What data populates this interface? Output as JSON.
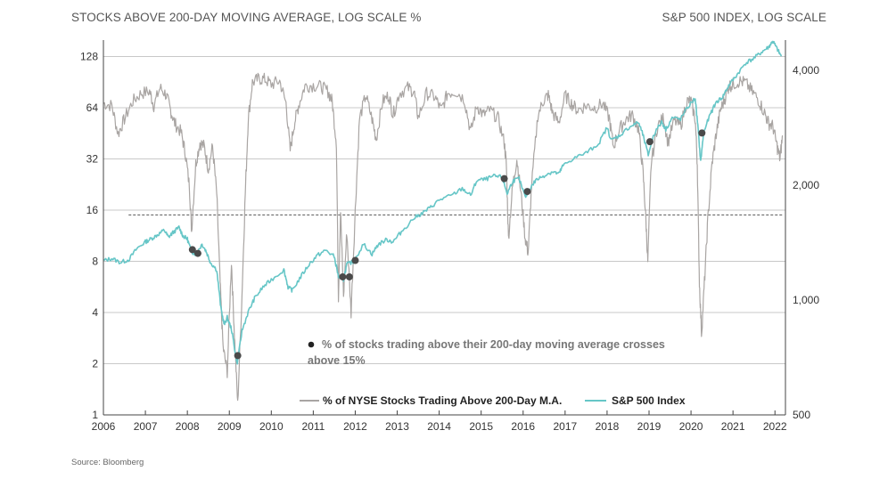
{
  "header": {
    "left_title": "STOCKS ABOVE 200-DAY MOVING AVERAGE, LOG SCALE %",
    "right_title": "S&P 500 INDEX, LOG SCALE"
  },
  "source": "Source: Bloomberg",
  "chart_data": {
    "type": "line",
    "left_axis": {
      "scale": "log2",
      "ticks": [
        1,
        2,
        4,
        8,
        16,
        32,
        64,
        128
      ],
      "ylim": [
        1,
        160
      ]
    },
    "right_axis": {
      "scale": "log",
      "ticks": [
        500,
        1000,
        2000,
        4000
      ],
      "tick_labels": [
        "500",
        "1,000",
        "2,000",
        "4,000"
      ],
      "ylim": [
        500,
        4800
      ]
    },
    "x_axis": {
      "ticks": [
        2006,
        2007,
        2008,
        2009,
        2010,
        2011,
        2012,
        2013,
        2014,
        2015,
        2016,
        2017,
        2018,
        2019,
        2020,
        2021,
        2022
      ],
      "xlim": [
        2006.0,
        2022.25
      ]
    },
    "grid": "horizontal",
    "threshold": {
      "value": 15,
      "style": "dashed",
      "x_start": 2006.6,
      "x_end": 2022.2
    },
    "series": [
      {
        "name": "% of NYSE Stocks Trading Above 200-Day M.A.",
        "axis": "left",
        "color": "#a9a5a3",
        "points": [
          [
            2006.0,
            68
          ],
          [
            2006.2,
            66
          ],
          [
            2006.35,
            45
          ],
          [
            2006.5,
            55
          ],
          [
            2006.7,
            70
          ],
          [
            2006.9,
            78
          ],
          [
            2007.1,
            80
          ],
          [
            2007.2,
            66
          ],
          [
            2007.35,
            84
          ],
          [
            2007.5,
            76
          ],
          [
            2007.6,
            62
          ],
          [
            2007.7,
            52
          ],
          [
            2007.85,
            46
          ],
          [
            2007.95,
            35
          ],
          [
            2008.05,
            22
          ],
          [
            2008.1,
            12
          ],
          [
            2008.2,
            30
          ],
          [
            2008.3,
            40
          ],
          [
            2008.4,
            38
          ],
          [
            2008.5,
            28
          ],
          [
            2008.6,
            38
          ],
          [
            2008.7,
            20
          ],
          [
            2008.78,
            6
          ],
          [
            2008.85,
            2.5
          ],
          [
            2008.95,
            1.8
          ],
          [
            2009.05,
            8
          ],
          [
            2009.12,
            3
          ],
          [
            2009.2,
            1.15
          ],
          [
            2009.3,
            5
          ],
          [
            2009.38,
            20
          ],
          [
            2009.45,
            55
          ],
          [
            2009.55,
            90
          ],
          [
            2009.7,
            95
          ],
          [
            2009.85,
            94
          ],
          [
            2010.0,
            88
          ],
          [
            2010.2,
            92
          ],
          [
            2010.35,
            68
          ],
          [
            2010.45,
            36
          ],
          [
            2010.55,
            52
          ],
          [
            2010.65,
            66
          ],
          [
            2010.8,
            86
          ],
          [
            2011.0,
            87
          ],
          [
            2011.2,
            85
          ],
          [
            2011.35,
            80
          ],
          [
            2011.45,
            70
          ],
          [
            2011.55,
            40
          ],
          [
            2011.6,
            5
          ],
          [
            2011.65,
            16
          ],
          [
            2011.72,
            5
          ],
          [
            2011.8,
            12
          ],
          [
            2011.9,
            4
          ],
          [
            2012.0,
            16
          ],
          [
            2012.1,
            55
          ],
          [
            2012.25,
            76
          ],
          [
            2012.4,
            55
          ],
          [
            2012.5,
            42
          ],
          [
            2012.65,
            70
          ],
          [
            2012.8,
            76
          ],
          [
            2012.9,
            58
          ],
          [
            2013.05,
            78
          ],
          [
            2013.25,
            84
          ],
          [
            2013.4,
            80
          ],
          [
            2013.5,
            56
          ],
          [
            2013.7,
            78
          ],
          [
            2013.9,
            74
          ],
          [
            2014.05,
            62
          ],
          [
            2014.2,
            78
          ],
          [
            2014.4,
            80
          ],
          [
            2014.6,
            72
          ],
          [
            2014.75,
            46
          ],
          [
            2014.9,
            66
          ],
          [
            2015.05,
            58
          ],
          [
            2015.2,
            62
          ],
          [
            2015.4,
            56
          ],
          [
            2015.55,
            40
          ],
          [
            2015.6,
            30
          ],
          [
            2015.65,
            11
          ],
          [
            2015.75,
            22
          ],
          [
            2015.85,
            32
          ],
          [
            2015.95,
            20
          ],
          [
            2016.05,
            11
          ],
          [
            2016.12,
            9
          ],
          [
            2016.2,
            22
          ],
          [
            2016.35,
            58
          ],
          [
            2016.5,
            72
          ],
          [
            2016.6,
            76
          ],
          [
            2016.7,
            60
          ],
          [
            2016.85,
            52
          ],
          [
            2017.0,
            76
          ],
          [
            2017.15,
            68
          ],
          [
            2017.3,
            62
          ],
          [
            2017.5,
            66
          ],
          [
            2017.7,
            64
          ],
          [
            2017.9,
            68
          ],
          [
            2018.05,
            56
          ],
          [
            2018.15,
            38
          ],
          [
            2018.3,
            48
          ],
          [
            2018.45,
            55
          ],
          [
            2018.6,
            58
          ],
          [
            2018.75,
            48
          ],
          [
            2018.85,
            28
          ],
          [
            2018.92,
            15
          ],
          [
            2018.97,
            8
          ],
          [
            2019.05,
            30
          ],
          [
            2019.2,
            50
          ],
          [
            2019.35,
            56
          ],
          [
            2019.45,
            40
          ],
          [
            2019.6,
            54
          ],
          [
            2019.75,
            50
          ],
          [
            2019.9,
            70
          ],
          [
            2020.0,
            70
          ],
          [
            2020.1,
            55
          ],
          [
            2020.15,
            30
          ],
          [
            2020.2,
            6
          ],
          [
            2020.25,
            3
          ],
          [
            2020.32,
            6
          ],
          [
            2020.4,
            14
          ],
          [
            2020.5,
            30
          ],
          [
            2020.6,
            45
          ],
          [
            2020.7,
            62
          ],
          [
            2020.8,
            72
          ],
          [
            2020.9,
            86
          ],
          [
            2021.0,
            88
          ],
          [
            2021.15,
            92
          ],
          [
            2021.3,
            90
          ],
          [
            2021.45,
            80
          ],
          [
            2021.6,
            72
          ],
          [
            2021.75,
            60
          ],
          [
            2021.85,
            52
          ],
          [
            2021.95,
            50
          ],
          [
            2022.05,
            38
          ],
          [
            2022.12,
            32
          ],
          [
            2022.18,
            44
          ]
        ]
      },
      {
        "name": "S&P 500 Index",
        "axis": "right",
        "color": "#66c6c7",
        "points": [
          [
            2006.0,
            1268
          ],
          [
            2006.2,
            1285
          ],
          [
            2006.4,
            1255
          ],
          [
            2006.6,
            1275
          ],
          [
            2006.8,
            1365
          ],
          [
            2007.0,
            1420
          ],
          [
            2007.15,
            1450
          ],
          [
            2007.3,
            1485
          ],
          [
            2007.45,
            1525
          ],
          [
            2007.55,
            1460
          ],
          [
            2007.65,
            1500
          ],
          [
            2007.8,
            1550
          ],
          [
            2007.9,
            1470
          ],
          [
            2008.0,
            1445
          ],
          [
            2008.1,
            1340
          ],
          [
            2008.2,
            1320
          ],
          [
            2008.35,
            1400
          ],
          [
            2008.45,
            1340
          ],
          [
            2008.55,
            1255
          ],
          [
            2008.7,
            1200
          ],
          [
            2008.8,
            950
          ],
          [
            2008.88,
            860
          ],
          [
            2008.95,
            900
          ],
          [
            2009.05,
            840
          ],
          [
            2009.15,
            720
          ],
          [
            2009.19,
            680
          ],
          [
            2009.3,
            830
          ],
          [
            2009.45,
            930
          ],
          [
            2009.6,
            1010
          ],
          [
            2009.8,
            1080
          ],
          [
            2010.0,
            1130
          ],
          [
            2010.3,
            1200
          ],
          [
            2010.4,
            1080
          ],
          [
            2010.5,
            1060
          ],
          [
            2010.7,
            1150
          ],
          [
            2010.9,
            1240
          ],
          [
            2011.1,
            1310
          ],
          [
            2011.3,
            1350
          ],
          [
            2011.5,
            1300
          ],
          [
            2011.6,
            1150
          ],
          [
            2011.72,
            1130
          ],
          [
            2011.8,
            1240
          ],
          [
            2011.95,
            1260
          ],
          [
            2012.2,
            1400
          ],
          [
            2012.4,
            1320
          ],
          [
            2012.55,
            1400
          ],
          [
            2012.75,
            1440
          ],
          [
            2012.9,
            1420
          ],
          [
            2013.1,
            1510
          ],
          [
            2013.4,
            1640
          ],
          [
            2013.6,
            1690
          ],
          [
            2013.8,
            1750
          ],
          [
            2014.0,
            1830
          ],
          [
            2014.3,
            1880
          ],
          [
            2014.55,
            1960
          ],
          [
            2014.75,
            1880
          ],
          [
            2014.9,
            2060
          ],
          [
            2015.1,
            2070
          ],
          [
            2015.3,
            2110
          ],
          [
            2015.5,
            2100
          ],
          [
            2015.62,
            1900
          ],
          [
            2015.75,
            2050
          ],
          [
            2015.9,
            2080
          ],
          [
            2016.05,
            1860
          ],
          [
            2016.15,
            1950
          ],
          [
            2016.3,
            2060
          ],
          [
            2016.5,
            2120
          ],
          [
            2016.7,
            2170
          ],
          [
            2016.85,
            2140
          ],
          [
            2016.95,
            2250
          ],
          [
            2017.2,
            2350
          ],
          [
            2017.5,
            2430
          ],
          [
            2017.8,
            2570
          ],
          [
            2018.0,
            2830
          ],
          [
            2018.1,
            2620
          ],
          [
            2018.3,
            2700
          ],
          [
            2018.55,
            2850
          ],
          [
            2018.75,
            2920
          ],
          [
            2018.85,
            2720
          ],
          [
            2018.98,
            2400
          ],
          [
            2019.1,
            2700
          ],
          [
            2019.3,
            2930
          ],
          [
            2019.4,
            2800
          ],
          [
            2019.55,
            3000
          ],
          [
            2019.75,
            2980
          ],
          [
            2019.95,
            3230
          ],
          [
            2020.1,
            3380
          ],
          [
            2020.17,
            2800
          ],
          [
            2020.23,
            2300
          ],
          [
            2020.3,
            2750
          ],
          [
            2020.45,
            3050
          ],
          [
            2020.6,
            3300
          ],
          [
            2020.75,
            3400
          ],
          [
            2020.9,
            3650
          ],
          [
            2021.1,
            3900
          ],
          [
            2021.3,
            4180
          ],
          [
            2021.5,
            4300
          ],
          [
            2021.7,
            4480
          ],
          [
            2021.85,
            4600
          ],
          [
            2021.95,
            4770
          ],
          [
            2022.05,
            4550
          ],
          [
            2022.15,
            4350
          ]
        ]
      }
    ],
    "crossings": [
      {
        "x": 2008.12,
        "sp500": 1355
      },
      {
        "x": 2008.25,
        "sp500": 1325
      },
      {
        "x": 2009.2,
        "sp500": 715
      },
      {
        "x": 2011.7,
        "sp500": 1150
      },
      {
        "x": 2011.86,
        "sp500": 1150
      },
      {
        "x": 2012.0,
        "sp500": 1270
      },
      {
        "x": 2015.55,
        "sp500": 2080
      },
      {
        "x": 2016.1,
        "sp500": 1925
      },
      {
        "x": 2019.02,
        "sp500": 2600
      },
      {
        "x": 2020.26,
        "sp500": 2740
      }
    ],
    "legend": {
      "items": [
        "% of NYSE Stocks Trading Above 200-Day M.A.",
        "S&P 500 Index"
      ],
      "placement": "bottom-right"
    },
    "annotation": [
      "% of stocks trading above their 200-day moving average crosses",
      "above 15%"
    ],
    "colors": {
      "gray_series": "#a9a5a3",
      "teal_series": "#66c6c7",
      "dots": "#4a4a4a",
      "grid": "#c8c8c8",
      "threshold": "#555555"
    }
  }
}
